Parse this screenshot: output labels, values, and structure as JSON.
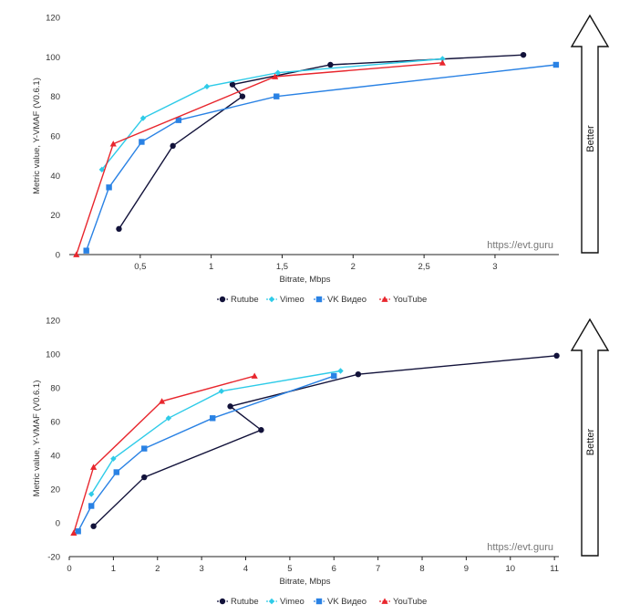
{
  "chart_data": [
    {
      "type": "line",
      "xlabel": "Bitrate, Mbps",
      "ylabel": "Metric value, Y-VMAF (V0.6.1)",
      "xlim": [
        0,
        3.45
      ],
      "ylim": [
        0,
        120
      ],
      "xticks": [
        {
          "value": 0.5,
          "label": "0,5"
        },
        {
          "value": 1,
          "label": "1"
        },
        {
          "value": 1.5,
          "label": "1,5"
        },
        {
          "value": 2,
          "label": "2"
        },
        {
          "value": 2.5,
          "label": "2,5"
        },
        {
          "value": 3,
          "label": "3"
        }
      ],
      "yticks": [
        {
          "value": 0,
          "label": "0"
        },
        {
          "value": 20,
          "label": "20"
        },
        {
          "value": 40,
          "label": "40"
        },
        {
          "value": 60,
          "label": "60"
        },
        {
          "value": 80,
          "label": "80"
        },
        {
          "value": 100,
          "label": "100"
        },
        {
          "value": 120,
          "label": "120"
        }
      ],
      "grid": false,
      "legend_position": "bottom",
      "watermark": "https://evt.guru",
      "annotation": "Better",
      "series": [
        {
          "name": "Rutube",
          "color": "#12123a",
          "marker": "circle",
          "points": [
            [
              0.35,
              13
            ],
            [
              0.73,
              55
            ],
            [
              1.22,
              80
            ],
            [
              1.15,
              86
            ],
            [
              1.84,
              96
            ],
            [
              3.2,
              101
            ]
          ]
        },
        {
          "name": "Vimeo",
          "color": "#2ecbe8",
          "marker": "diamond",
          "points": [
            [
              0.23,
              43
            ],
            [
              0.52,
              69
            ],
            [
              0.97,
              85
            ],
            [
              1.47,
              92
            ],
            [
              2.63,
              99
            ]
          ]
        },
        {
          "name": "VK Видео",
          "color": "#2a82e4",
          "marker": "square",
          "points": [
            [
              0.12,
              2
            ],
            [
              0.28,
              34
            ],
            [
              0.51,
              57
            ],
            [
              0.77,
              68
            ],
            [
              1.46,
              80
            ],
            [
              3.43,
              96
            ]
          ]
        },
        {
          "name": "YouTube",
          "color": "#e8262d",
          "marker": "triangle",
          "points": [
            [
              0.05,
              0
            ],
            [
              0.31,
              56
            ],
            [
              1.45,
              90
            ],
            [
              2.63,
              97
            ]
          ]
        }
      ]
    },
    {
      "type": "line",
      "xlabel": "Bitrate, Mbps",
      "ylabel": "Metric value, Y-VMAF (V0.6.1)",
      "xlim": [
        0,
        11.1
      ],
      "ylim": [
        -20,
        120
      ],
      "xticks": [
        {
          "value": 0,
          "label": "0"
        },
        {
          "value": 1,
          "label": "1"
        },
        {
          "value": 2,
          "label": "2"
        },
        {
          "value": 3,
          "label": "3"
        },
        {
          "value": 4,
          "label": "4"
        },
        {
          "value": 5,
          "label": "5"
        },
        {
          "value": 6,
          "label": "6"
        },
        {
          "value": 7,
          "label": "7"
        },
        {
          "value": 8,
          "label": "8"
        },
        {
          "value": 9,
          "label": "9"
        },
        {
          "value": 10,
          "label": "10"
        },
        {
          "value": 11,
          "label": "11"
        }
      ],
      "yticks": [
        {
          "value": -20,
          "label": "-20"
        },
        {
          "value": 0,
          "label": "0"
        },
        {
          "value": 20,
          "label": "20"
        },
        {
          "value": 40,
          "label": "40"
        },
        {
          "value": 60,
          "label": "60"
        },
        {
          "value": 80,
          "label": "80"
        },
        {
          "value": 100,
          "label": "100"
        },
        {
          "value": 120,
          "label": "120"
        }
      ],
      "grid": false,
      "legend_position": "bottom",
      "watermark": "https://evt.guru",
      "annotation": "Better",
      "series": [
        {
          "name": "Rutube",
          "color": "#12123a",
          "marker": "circle",
          "points": [
            [
              0.55,
              -2
            ],
            [
              1.7,
              27
            ],
            [
              4.35,
              55
            ],
            [
              3.65,
              69
            ],
            [
              6.55,
              88
            ],
            [
              11.05,
              99
            ]
          ]
        },
        {
          "name": "Vimeo",
          "color": "#2ecbe8",
          "marker": "diamond",
          "points": [
            [
              0.5,
              17
            ],
            [
              1.0,
              38
            ],
            [
              2.25,
              62
            ],
            [
              3.45,
              78
            ],
            [
              6.15,
              90
            ]
          ]
        },
        {
          "name": "VK Видео",
          "color": "#2a82e4",
          "marker": "square",
          "points": [
            [
              0.2,
              -5
            ],
            [
              0.5,
              10
            ],
            [
              1.07,
              30
            ],
            [
              1.7,
              44
            ],
            [
              3.25,
              62
            ],
            [
              6.0,
              87
            ]
          ]
        },
        {
          "name": "YouTube",
          "color": "#e8262d",
          "marker": "triangle",
          "points": [
            [
              0.1,
              -6
            ],
            [
              0.55,
              33
            ],
            [
              2.1,
              72
            ],
            [
              4.2,
              87
            ]
          ]
        }
      ]
    }
  ]
}
